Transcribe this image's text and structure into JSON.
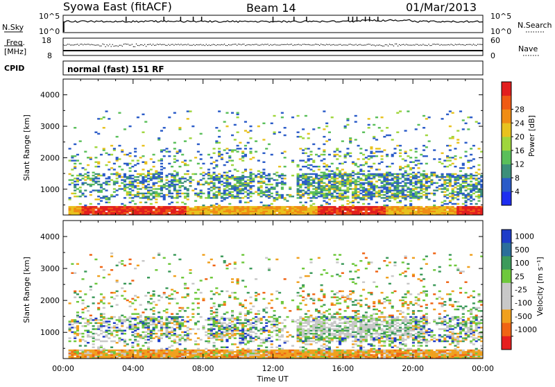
{
  "header": {
    "station": "Syowa East (fitACF)",
    "beam": "Beam 14",
    "date": "01/Mar/2013"
  },
  "summary_panels": {
    "nsky_label": "N.Sky",
    "nsearch_label": "N.Search",
    "nsky_ticks": [
      "10^5",
      "10^0"
    ],
    "nsearch_ticks": [
      "10^5",
      "10^0"
    ],
    "freq_label_line1": "Freq.",
    "freq_label_line2": "[MHz]",
    "freq_ticks": [
      "18",
      "8"
    ],
    "nave_label": "Nave",
    "nave_ticks": [
      "60",
      "0"
    ],
    "cpid_label": "CPID",
    "cpid_text": "normal (fast) 151 RF"
  },
  "chart_data": [
    {
      "type": "heatmap",
      "title": "",
      "ylabel": "Slant Range [km]",
      "xlabel": "",
      "ylim": [
        180,
        4500
      ],
      "yticks": [
        "1000",
        "2000",
        "3000",
        "4000"
      ],
      "xlim": [
        0,
        24
      ],
      "colorbar": {
        "label": "Power [dB]",
        "ticks": [
          "4",
          "8",
          "12",
          "16",
          "20",
          "24",
          "28"
        ],
        "colors": [
          "#1e2ef0",
          "#2a5bc8",
          "#3c8f7a",
          "#5abf5a",
          "#9fd63c",
          "#e8c21e",
          "#f08c14",
          "#ef5a14",
          "#e21e1e"
        ]
      }
    },
    {
      "type": "heatmap",
      "title": "",
      "ylabel": "Slant Range [km]",
      "xlabel": "Time UT",
      "ylim": [
        180,
        4500
      ],
      "yticks": [
        "1000",
        "2000",
        "3000",
        "4000"
      ],
      "xlim": [
        0,
        24
      ],
      "xticks": [
        "00:00",
        "04:00",
        "08:00",
        "12:00",
        "16:00",
        "20:00",
        "00:00"
      ],
      "colorbar": {
        "label": "Velocity [m s⁻¹]",
        "ticks": [
          "1000",
          "500",
          "100",
          "25",
          "-25",
          "-100",
          "-500",
          "-1000"
        ],
        "colors": [
          "#1e3cc8",
          "#2b6e9a",
          "#3c9a5a",
          "#6ec83c",
          "#c8c8c8",
          "#c8c8c8",
          "#f0a01e",
          "#f06414",
          "#e61e1e"
        ]
      }
    }
  ]
}
